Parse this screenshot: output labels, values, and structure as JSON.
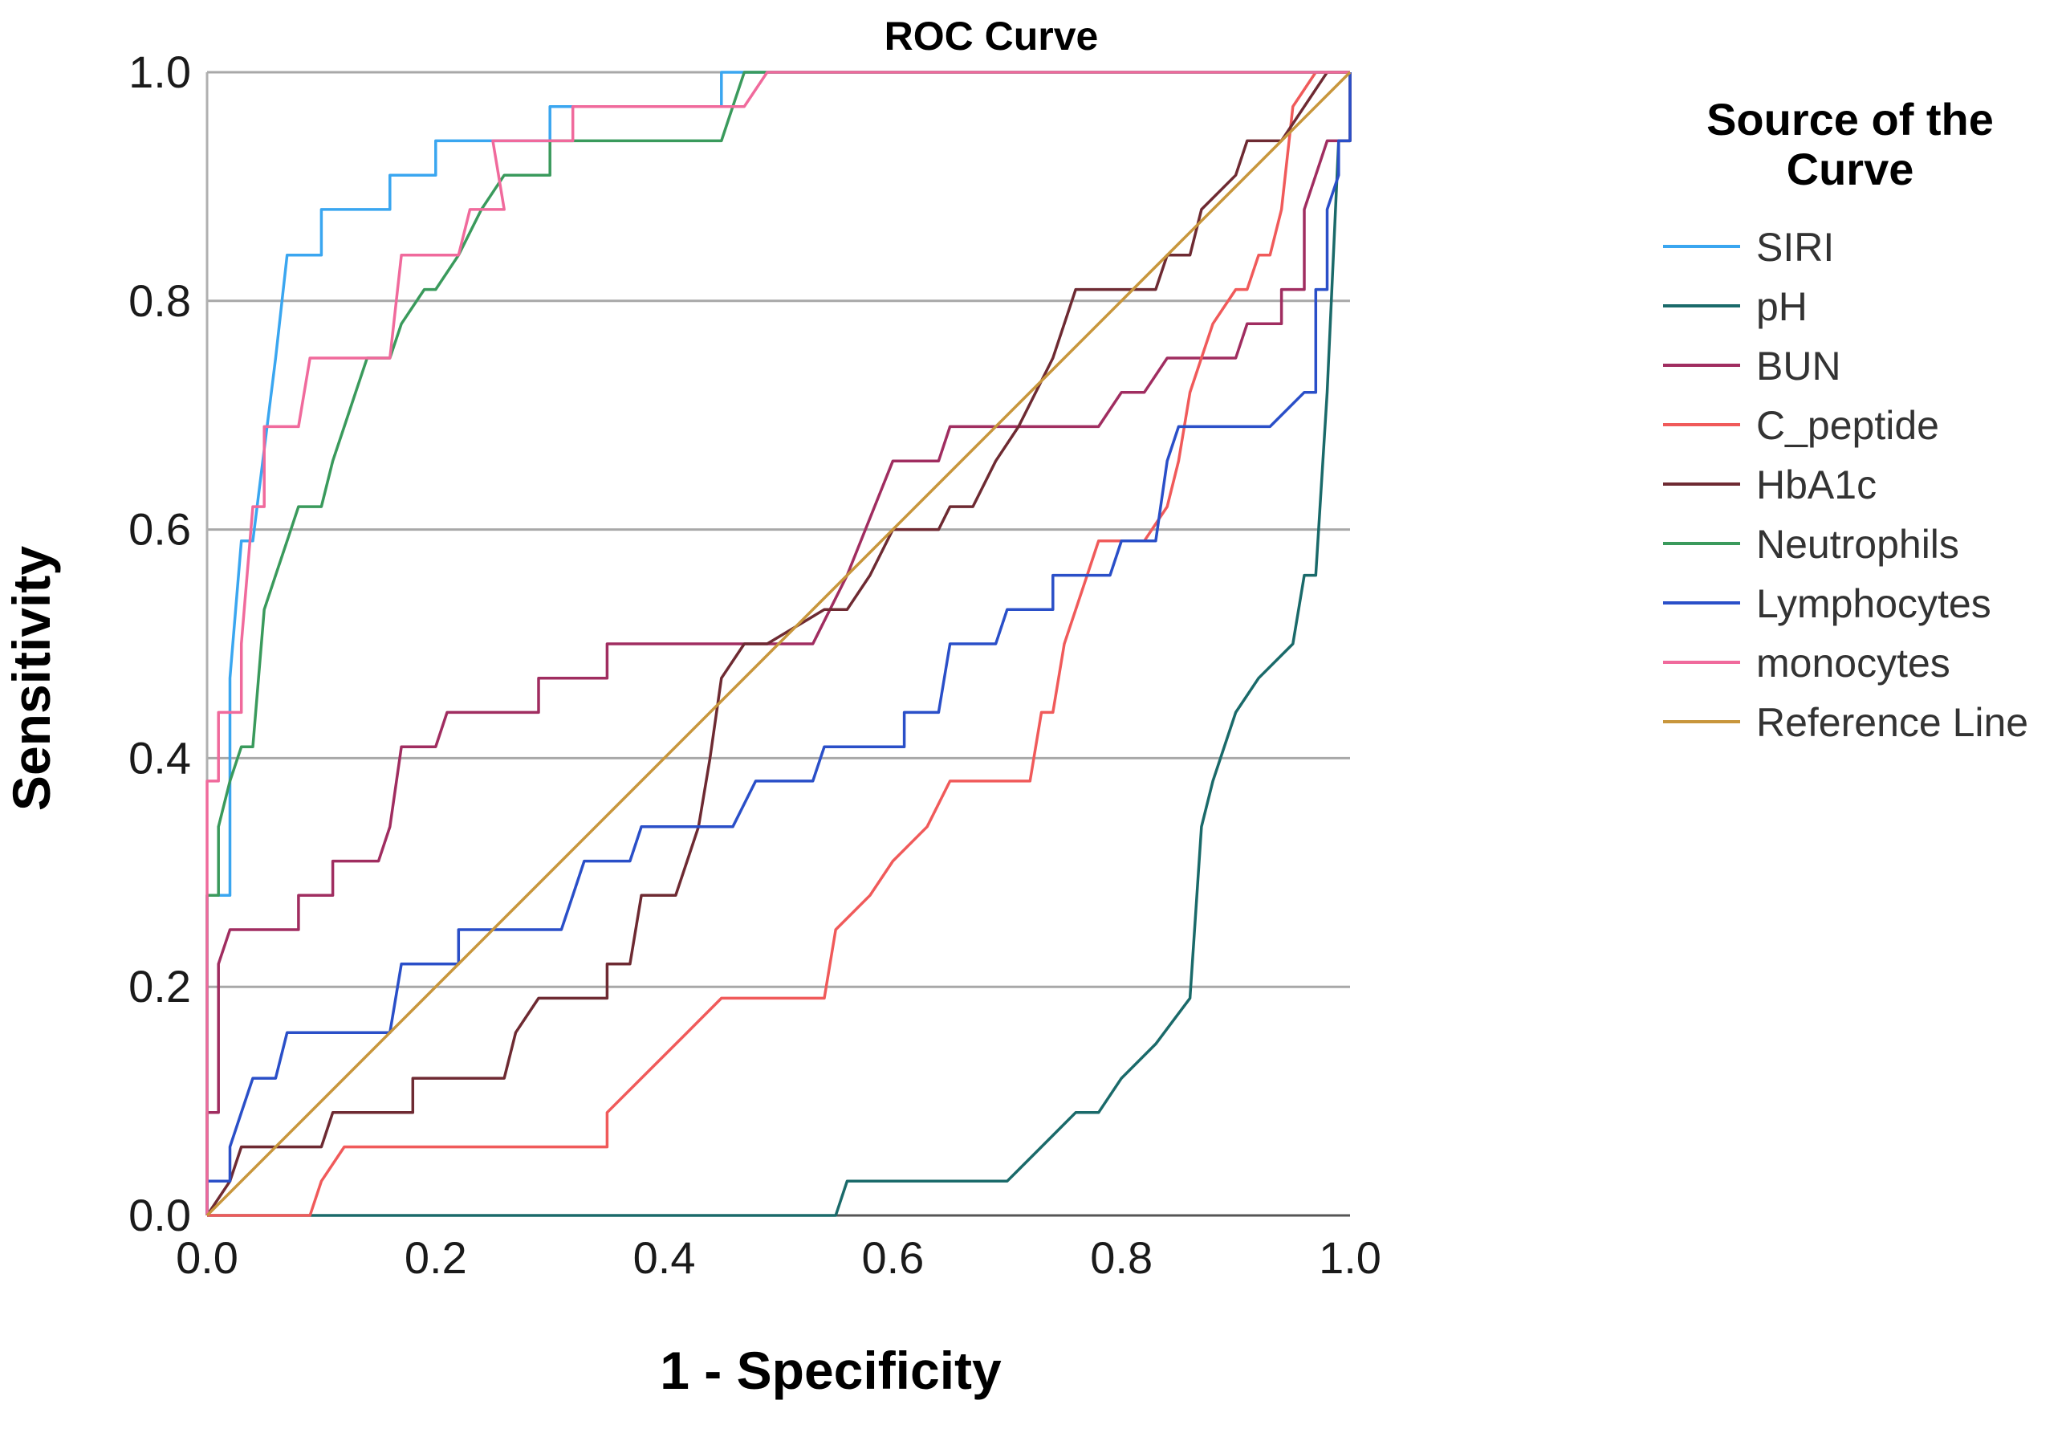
{
  "chart_data": {
    "type": "line",
    "title": "ROC Curve",
    "xlabel": "1 - Specificity",
    "ylabel": "Sensitivity",
    "xlim": [
      0,
      1
    ],
    "ylim": [
      0,
      1
    ],
    "xticks": [
      "0.0",
      "0.2",
      "0.4",
      "0.6",
      "0.8",
      "1.0"
    ],
    "yticks": [
      "0.0",
      "0.2",
      "0.4",
      "0.6",
      "0.8",
      "1.0"
    ],
    "grid": "horizontal",
    "legend_title": [
      "Source of the",
      "Curve"
    ],
    "legend_position": "right",
    "series": [
      {
        "name": "SIRI",
        "color": "#3aa6f0",
        "points": [
          [
            0,
            0
          ],
          [
            0,
            0.28
          ],
          [
            0.02,
            0.28
          ],
          [
            0.02,
            0.47
          ],
          [
            0.03,
            0.59
          ],
          [
            0.04,
            0.59
          ],
          [
            0.06,
            0.75
          ],
          [
            0.07,
            0.84
          ],
          [
            0.1,
            0.84
          ],
          [
            0.1,
            0.88
          ],
          [
            0.16,
            0.88
          ],
          [
            0.16,
            0.91
          ],
          [
            0.2,
            0.91
          ],
          [
            0.2,
            0.94
          ],
          [
            0.3,
            0.94
          ],
          [
            0.3,
            0.97
          ],
          [
            0.45,
            0.97
          ],
          [
            0.45,
            1
          ],
          [
            1,
            1
          ]
        ]
      },
      {
        "name": "pH",
        "color": "#1a6a6a",
        "points": [
          [
            0,
            0
          ],
          [
            0.55,
            0
          ],
          [
            0.56,
            0.03
          ],
          [
            0.7,
            0.03
          ],
          [
            0.73,
            0.06
          ],
          [
            0.76,
            0.09
          ],
          [
            0.78,
            0.09
          ],
          [
            0.8,
            0.12
          ],
          [
            0.83,
            0.15
          ],
          [
            0.86,
            0.19
          ],
          [
            0.87,
            0.34
          ],
          [
            0.88,
            0.38
          ],
          [
            0.9,
            0.44
          ],
          [
            0.92,
            0.47
          ],
          [
            0.95,
            0.5
          ],
          [
            0.96,
            0.56
          ],
          [
            0.97,
            0.56
          ],
          [
            0.98,
            0.72
          ],
          [
            0.99,
            0.94
          ],
          [
            1,
            0.94
          ],
          [
            1,
            1
          ]
        ]
      },
      {
        "name": "BUN",
        "color": "#a02d60",
        "points": [
          [
            0,
            0
          ],
          [
            0,
            0.09
          ],
          [
            0.01,
            0.09
          ],
          [
            0.01,
            0.22
          ],
          [
            0.02,
            0.25
          ],
          [
            0.08,
            0.25
          ],
          [
            0.08,
            0.28
          ],
          [
            0.11,
            0.28
          ],
          [
            0.11,
            0.31
          ],
          [
            0.15,
            0.31
          ],
          [
            0.16,
            0.34
          ],
          [
            0.17,
            0.41
          ],
          [
            0.2,
            0.41
          ],
          [
            0.21,
            0.44
          ],
          [
            0.29,
            0.44
          ],
          [
            0.29,
            0.47
          ],
          [
            0.35,
            0.47
          ],
          [
            0.35,
            0.5
          ],
          [
            0.53,
            0.5
          ],
          [
            0.56,
            0.56
          ],
          [
            0.6,
            0.66
          ],
          [
            0.64,
            0.66
          ],
          [
            0.65,
            0.69
          ],
          [
            0.78,
            0.69
          ],
          [
            0.8,
            0.72
          ],
          [
            0.82,
            0.72
          ],
          [
            0.84,
            0.75
          ],
          [
            0.9,
            0.75
          ],
          [
            0.91,
            0.78
          ],
          [
            0.94,
            0.78
          ],
          [
            0.94,
            0.81
          ],
          [
            0.96,
            0.81
          ],
          [
            0.96,
            0.88
          ],
          [
            0.97,
            0.91
          ],
          [
            0.98,
            0.94
          ],
          [
            1,
            0.94
          ],
          [
            1,
            1
          ]
        ]
      },
      {
        "name": "C_peptide",
        "color": "#f05a5a",
        "points": [
          [
            0,
            0
          ],
          [
            0.09,
            0
          ],
          [
            0.1,
            0.03
          ],
          [
            0.12,
            0.06
          ],
          [
            0.35,
            0.06
          ],
          [
            0.35,
            0.09
          ],
          [
            0.38,
            0.12
          ],
          [
            0.42,
            0.16
          ],
          [
            0.45,
            0.19
          ],
          [
            0.54,
            0.19
          ],
          [
            0.55,
            0.25
          ],
          [
            0.58,
            0.28
          ],
          [
            0.6,
            0.31
          ],
          [
            0.63,
            0.34
          ],
          [
            0.65,
            0.38
          ],
          [
            0.72,
            0.38
          ],
          [
            0.73,
            0.44
          ],
          [
            0.74,
            0.44
          ],
          [
            0.75,
            0.5
          ],
          [
            0.77,
            0.56
          ],
          [
            0.78,
            0.59
          ],
          [
            0.82,
            0.59
          ],
          [
            0.84,
            0.62
          ],
          [
            0.85,
            0.66
          ],
          [
            0.86,
            0.72
          ],
          [
            0.88,
            0.78
          ],
          [
            0.9,
            0.81
          ],
          [
            0.91,
            0.81
          ],
          [
            0.92,
            0.84
          ],
          [
            0.93,
            0.84
          ],
          [
            0.94,
            0.88
          ],
          [
            0.95,
            0.97
          ],
          [
            0.97,
            1
          ],
          [
            1,
            1
          ]
        ]
      },
      {
        "name": "HbA1c",
        "color": "#6e2a32",
        "points": [
          [
            0,
            0
          ],
          [
            0.02,
            0.03
          ],
          [
            0.03,
            0.06
          ],
          [
            0.1,
            0.06
          ],
          [
            0.11,
            0.09
          ],
          [
            0.18,
            0.09
          ],
          [
            0.18,
            0.12
          ],
          [
            0.26,
            0.12
          ],
          [
            0.27,
            0.16
          ],
          [
            0.29,
            0.19
          ],
          [
            0.35,
            0.19
          ],
          [
            0.35,
            0.22
          ],
          [
            0.37,
            0.22
          ],
          [
            0.38,
            0.28
          ],
          [
            0.41,
            0.28
          ],
          [
            0.42,
            0.31
          ],
          [
            0.43,
            0.34
          ],
          [
            0.44,
            0.4
          ],
          [
            0.45,
            0.47
          ],
          [
            0.47,
            0.5
          ],
          [
            0.49,
            0.5
          ],
          [
            0.54,
            0.53
          ],
          [
            0.56,
            0.53
          ],
          [
            0.58,
            0.56
          ],
          [
            0.6,
            0.6
          ],
          [
            0.64,
            0.6
          ],
          [
            0.65,
            0.62
          ],
          [
            0.67,
            0.62
          ],
          [
            0.69,
            0.66
          ],
          [
            0.71,
            0.69
          ],
          [
            0.74,
            0.75
          ],
          [
            0.75,
            0.78
          ],
          [
            0.76,
            0.81
          ],
          [
            0.83,
            0.81
          ],
          [
            0.84,
            0.84
          ],
          [
            0.86,
            0.84
          ],
          [
            0.87,
            0.88
          ],
          [
            0.9,
            0.91
          ],
          [
            0.91,
            0.94
          ],
          [
            0.94,
            0.94
          ],
          [
            0.96,
            0.97
          ],
          [
            0.98,
            1
          ],
          [
            1,
            1
          ]
        ]
      },
      {
        "name": "Neutrophils",
        "color": "#3a9a5c",
        "points": [
          [
            0,
            0
          ],
          [
            0,
            0.28
          ],
          [
            0.01,
            0.28
          ],
          [
            0.01,
            0.34
          ],
          [
            0.02,
            0.38
          ],
          [
            0.03,
            0.41
          ],
          [
            0.04,
            0.41
          ],
          [
            0.05,
            0.53
          ],
          [
            0.06,
            0.56
          ],
          [
            0.07,
            0.59
          ],
          [
            0.08,
            0.62
          ],
          [
            0.1,
            0.62
          ],
          [
            0.11,
            0.66
          ],
          [
            0.12,
            0.69
          ],
          [
            0.13,
            0.72
          ],
          [
            0.14,
            0.75
          ],
          [
            0.16,
            0.75
          ],
          [
            0.17,
            0.78
          ],
          [
            0.19,
            0.81
          ],
          [
            0.2,
            0.81
          ],
          [
            0.22,
            0.84
          ],
          [
            0.24,
            0.88
          ],
          [
            0.26,
            0.91
          ],
          [
            0.3,
            0.91
          ],
          [
            0.3,
            0.94
          ],
          [
            0.45,
            0.94
          ],
          [
            0.46,
            0.97
          ],
          [
            0.47,
            1
          ],
          [
            1,
            1
          ]
        ]
      },
      {
        "name": "Lymphocytes",
        "color": "#2a4fc8",
        "points": [
          [
            0,
            0
          ],
          [
            0,
            0.03
          ],
          [
            0.02,
            0.03
          ],
          [
            0.02,
            0.06
          ],
          [
            0.03,
            0.09
          ],
          [
            0.04,
            0.12
          ],
          [
            0.06,
            0.12
          ],
          [
            0.07,
            0.16
          ],
          [
            0.16,
            0.16
          ],
          [
            0.17,
            0.22
          ],
          [
            0.22,
            0.22
          ],
          [
            0.22,
            0.25
          ],
          [
            0.31,
            0.25
          ],
          [
            0.32,
            0.28
          ],
          [
            0.33,
            0.31
          ],
          [
            0.37,
            0.31
          ],
          [
            0.38,
            0.34
          ],
          [
            0.46,
            0.34
          ],
          [
            0.48,
            0.38
          ],
          [
            0.53,
            0.38
          ],
          [
            0.54,
            0.41
          ],
          [
            0.61,
            0.41
          ],
          [
            0.61,
            0.44
          ],
          [
            0.64,
            0.44
          ],
          [
            0.65,
            0.5
          ],
          [
            0.69,
            0.5
          ],
          [
            0.7,
            0.53
          ],
          [
            0.74,
            0.53
          ],
          [
            0.74,
            0.56
          ],
          [
            0.79,
            0.56
          ],
          [
            0.8,
            0.59
          ],
          [
            0.83,
            0.59
          ],
          [
            0.84,
            0.66
          ],
          [
            0.85,
            0.69
          ],
          [
            0.93,
            0.69
          ],
          [
            0.96,
            0.72
          ],
          [
            0.97,
            0.72
          ],
          [
            0.97,
            0.81
          ],
          [
            0.98,
            0.81
          ],
          [
            0.98,
            0.88
          ],
          [
            0.99,
            0.91
          ],
          [
            0.99,
            0.94
          ],
          [
            1,
            0.94
          ],
          [
            1,
            1
          ]
        ]
      },
      {
        "name": "monocytes",
        "color": "#f06a9c",
        "points": [
          [
            0,
            0
          ],
          [
            0,
            0.38
          ],
          [
            0.01,
            0.38
          ],
          [
            0.01,
            0.44
          ],
          [
            0.03,
            0.44
          ],
          [
            0.03,
            0.5
          ],
          [
            0.04,
            0.62
          ],
          [
            0.05,
            0.62
          ],
          [
            0.05,
            0.69
          ],
          [
            0.08,
            0.69
          ],
          [
            0.09,
            0.75
          ],
          [
            0.16,
            0.75
          ],
          [
            0.17,
            0.84
          ],
          [
            0.22,
            0.84
          ],
          [
            0.23,
            0.88
          ],
          [
            0.26,
            0.88
          ],
          [
            0.25,
            0.94
          ],
          [
            0.32,
            0.94
          ],
          [
            0.32,
            0.97
          ],
          [
            0.47,
            0.97
          ],
          [
            0.49,
            1
          ],
          [
            1,
            1
          ]
        ]
      },
      {
        "name": "Reference Line",
        "color": "#c8963c",
        "points": [
          [
            0,
            0
          ],
          [
            1,
            1
          ]
        ]
      }
    ]
  }
}
